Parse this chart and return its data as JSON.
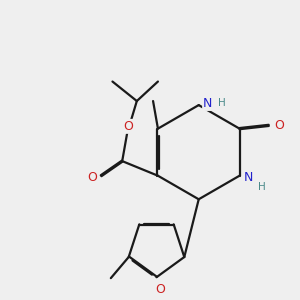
{
  "bg_color": "#efefef",
  "atom_colors": {
    "C": "#1a1a1a",
    "N_blue": "#2222cc",
    "N_teal": "#4a8a8a",
    "O": "#cc2222",
    "H": "#4a8a8a"
  },
  "bond_color": "#1a1a1a",
  "bond_width": 1.6,
  "font_size": 8.5
}
